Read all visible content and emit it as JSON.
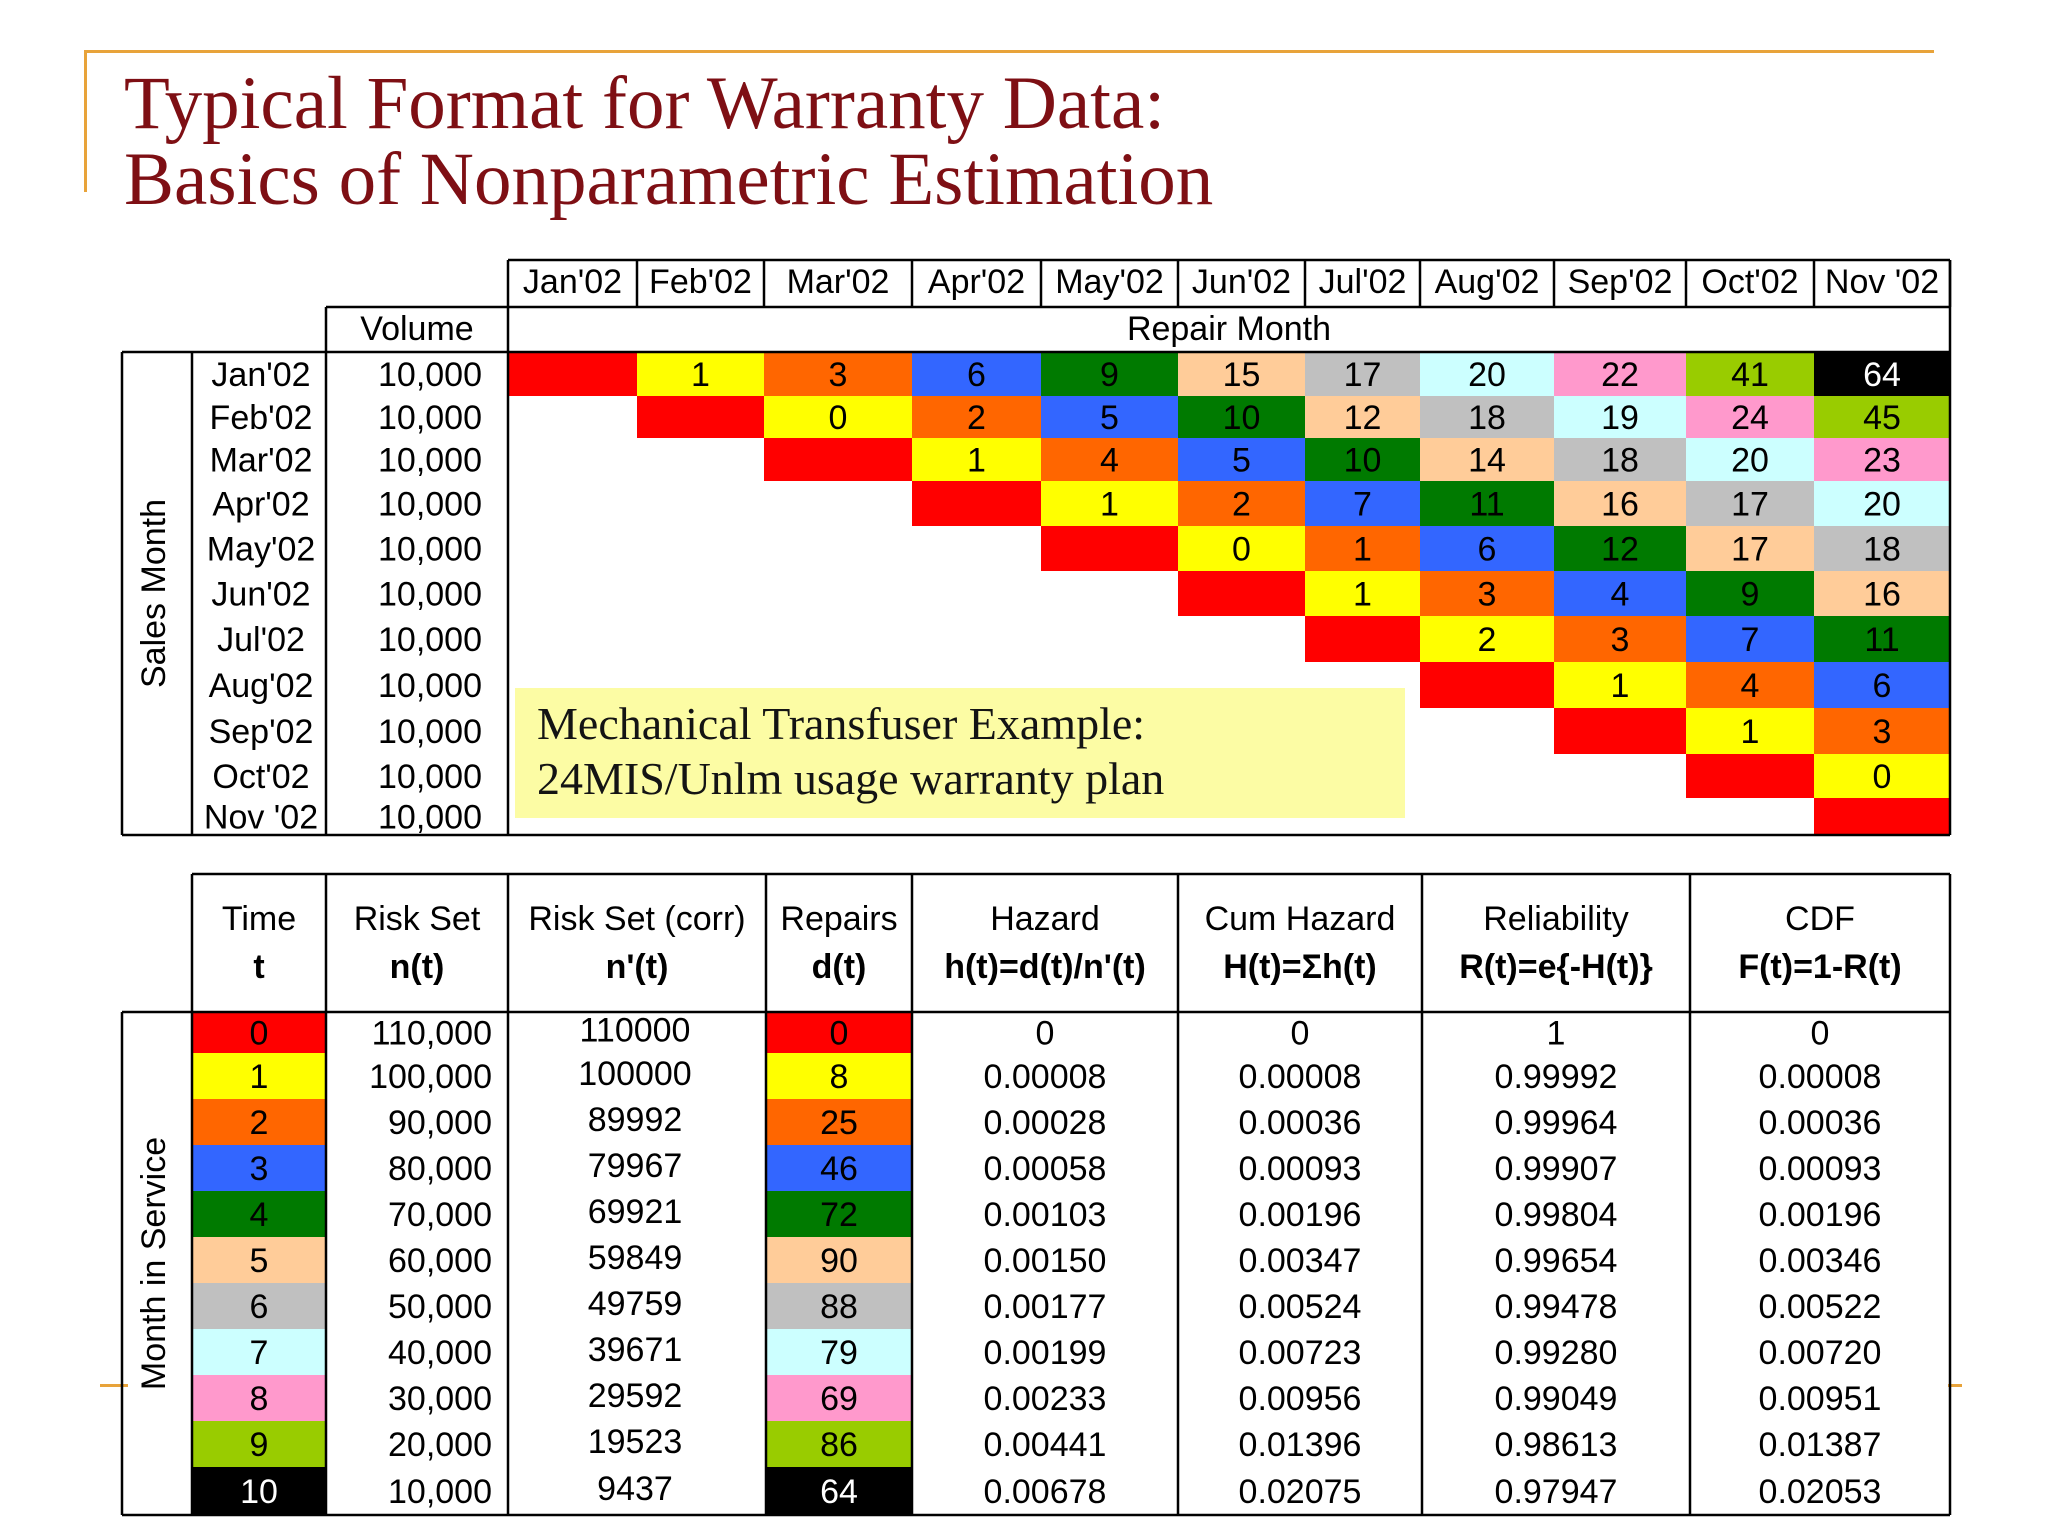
{
  "title": {
    "line1": "Typical Format for Warranty Data:",
    "line2": "Basics of Nonparametric Estimation"
  },
  "colors": {
    "c0": "#ff0000",
    "c1": "#ffff00",
    "c2": "#ff6600",
    "c3": "#3366ff",
    "c4": "#007a00",
    "c5": "#ffcc99",
    "c6": "#c0c0c0",
    "c7": "#ccffff",
    "c8": "#ff99cc",
    "c9": "#99cc00",
    "c10": "#000000"
  },
  "top_table": {
    "volume_header": "Volume",
    "repair_month_header": "Repair Month",
    "sales_month_label": "Sales Month",
    "repair_months": [
      "Jan'02",
      "Feb'02",
      "Mar'02",
      "Apr'02",
      "May'02",
      "Jun'02",
      "Jul'02",
      "Aug'02",
      "Sep'02",
      "Oct'02",
      "Nov '02"
    ],
    "sales_months": [
      "Jan'02",
      "Feb'02",
      "Mar'02",
      "Apr'02",
      "May'02",
      "Jun'02",
      "Jul'02",
      "Aug'02",
      "Sep'02",
      "Oct'02",
      "Nov '02"
    ],
    "volumes": [
      "10,000",
      "10,000",
      "10,000",
      "10,000",
      "10,000",
      "10,000",
      "10,000",
      "10,000",
      "10,000",
      "10,000",
      "10,000"
    ],
    "repairs": [
      [
        "",
        "1",
        "3",
        "6",
        "9",
        "15",
        "17",
        "20",
        "22",
        "41",
        "64"
      ],
      [
        "",
        "0",
        "2",
        "5",
        "10",
        "12",
        "18",
        "19",
        "24",
        "45"
      ],
      [
        "",
        "1",
        "4",
        "5",
        "10",
        "14",
        "18",
        "20",
        "23"
      ],
      [
        "",
        "1",
        "2",
        "7",
        "11",
        "16",
        "17",
        "20"
      ],
      [
        "",
        "0",
        "1",
        "6",
        "12",
        "17",
        "18"
      ],
      [
        "",
        "1",
        "3",
        "4",
        "9",
        "16"
      ],
      [
        "",
        "2",
        "3",
        "7",
        "11"
      ],
      [
        "",
        "1",
        "4",
        "6"
      ],
      [
        "",
        "1",
        "3"
      ],
      [
        "",
        "0"
      ],
      [
        ""
      ]
    ]
  },
  "note": {
    "line1": "Mechanical Transfuser Example:",
    "line2": "24MIS/Unlm usage warranty plan"
  },
  "bottom_table": {
    "month_in_service_label": "Month in Service",
    "headers": [
      {
        "top": "Time",
        "bottom": "t"
      },
      {
        "top": "Risk Set",
        "bottom": "n(t)"
      },
      {
        "top": "Risk Set (corr)",
        "bottom": "n'(t)"
      },
      {
        "top": "Repairs",
        "bottom": "d(t)"
      },
      {
        "top": "Hazard",
        "bottom": "h(t)=d(t)/n'(t)"
      },
      {
        "top": "Cum Hazard",
        "bottom": "H(t)=Σh(t)"
      },
      {
        "top": "Reliability",
        "bottom": "R(t)=e{-H(t)}"
      },
      {
        "top": "CDF",
        "bottom": "F(t)=1-R(t)"
      }
    ],
    "rows": [
      [
        "0",
        "110,000",
        "110000",
        "0",
        "0",
        "0",
        "1",
        "0"
      ],
      [
        "1",
        "100,000",
        "100000",
        "8",
        "0.00008",
        "0.00008",
        "0.99992",
        "0.00008"
      ],
      [
        "2",
        "90,000",
        "89992",
        "25",
        "0.00028",
        "0.00036",
        "0.99964",
        "0.00036"
      ],
      [
        "3",
        "80,000",
        "79967",
        "46",
        "0.00058",
        "0.00093",
        "0.99907",
        "0.00093"
      ],
      [
        "4",
        "70,000",
        "69921",
        "72",
        "0.00103",
        "0.00196",
        "0.99804",
        "0.00196"
      ],
      [
        "5",
        "60,000",
        "59849",
        "90",
        "0.00150",
        "0.00347",
        "0.99654",
        "0.00346"
      ],
      [
        "6",
        "50,000",
        "49759",
        "88",
        "0.00177",
        "0.00524",
        "0.99478",
        "0.00522"
      ],
      [
        "7",
        "40,000",
        "39671",
        "79",
        "0.00199",
        "0.00723",
        "0.99280",
        "0.00720"
      ],
      [
        "8",
        "30,000",
        "29592",
        "69",
        "0.00233",
        "0.00956",
        "0.99049",
        "0.00951"
      ],
      [
        "9",
        "20,000",
        "19523",
        "86",
        "0.00441",
        "0.01396",
        "0.98613",
        "0.01387"
      ],
      [
        "10",
        "10,000",
        "9437",
        "64",
        "0.00678",
        "0.02075",
        "0.97947",
        "0.02053"
      ]
    ]
  }
}
